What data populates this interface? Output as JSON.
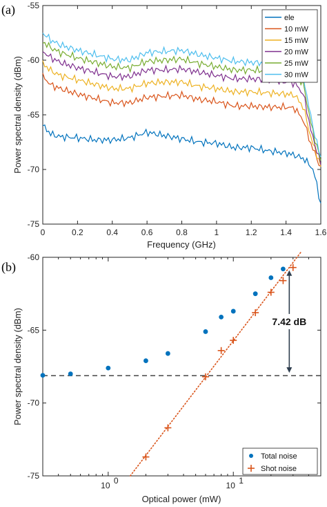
{
  "chart_data": [
    {
      "panel_label": "(a)",
      "type": "line",
      "xlabel": "Frequency (GHz)",
      "ylabel": "Power spectral density (dBm)",
      "xlim": [
        0,
        1.6
      ],
      "ylim": [
        -75,
        -55
      ],
      "xticks": [
        0,
        0.2,
        0.4,
        0.6,
        0.8,
        1,
        1.2,
        1.4,
        1.6
      ],
      "xtick_labels": [
        "0",
        "0.2",
        "0.4",
        "0.6",
        "0.8",
        "1",
        "1.2",
        "1.4",
        "1.6"
      ],
      "yticks": [
        -75,
        -70,
        -65,
        -60,
        -55
      ],
      "ytick_labels": [
        "-75",
        "-70",
        "-65",
        "-60",
        "-55"
      ],
      "legend_position": "top-right",
      "grid": false,
      "x": [
        0,
        0.05,
        0.1,
        0.2,
        0.3,
        0.4,
        0.5,
        0.6,
        0.7,
        0.8,
        0.9,
        1.0,
        1.1,
        1.2,
        1.3,
        1.4,
        1.45,
        1.5,
        1.55,
        1.58,
        1.6
      ],
      "series": [
        {
          "name": "ele",
          "color": "#0072BD",
          "values": [
            -66.0,
            -66.8,
            -67.0,
            -67.1,
            -67.3,
            -67.3,
            -67.1,
            -66.6,
            -66.9,
            -67.2,
            -67.5,
            -67.6,
            -68.0,
            -68.0,
            -68.3,
            -68.5,
            -68.7,
            -69.0,
            -69.8,
            -71.5,
            -73.3
          ]
        },
        {
          "name": "10 mW",
          "color": "#D95319",
          "values": [
            -61.5,
            -62.3,
            -62.6,
            -63.1,
            -63.5,
            -63.9,
            -63.9,
            -63.4,
            -63.3,
            -63.2,
            -63.6,
            -63.8,
            -64.2,
            -64.2,
            -64.3,
            -64.3,
            -64.4,
            -65.5,
            -68.0,
            -69.0,
            -70.0
          ]
        },
        {
          "name": "15 mW",
          "color": "#EDB120",
          "values": [
            -60.3,
            -61.0,
            -61.4,
            -61.8,
            -62.2,
            -62.6,
            -62.6,
            -62.1,
            -62.0,
            -62.0,
            -62.4,
            -62.6,
            -62.9,
            -62.9,
            -63.0,
            -63.1,
            -63.2,
            -64.3,
            -67.5,
            -68.7,
            -69.8
          ]
        },
        {
          "name": "20 mW",
          "color": "#7E2F8E",
          "values": [
            -59.2,
            -59.8,
            -60.2,
            -60.7,
            -61.1,
            -61.5,
            -61.5,
            -60.9,
            -60.9,
            -60.8,
            -61.1,
            -61.4,
            -61.7,
            -61.7,
            -61.8,
            -62.0,
            -62.1,
            -63.1,
            -66.9,
            -68.4,
            -69.5
          ]
        },
        {
          "name": "25 mW",
          "color": "#77AC30",
          "values": [
            -58.3,
            -58.9,
            -59.3,
            -59.8,
            -60.2,
            -60.6,
            -60.7,
            -60.1,
            -60.0,
            -59.9,
            -60.3,
            -60.6,
            -60.9,
            -60.9,
            -61.0,
            -61.2,
            -61.3,
            -62.2,
            -66.3,
            -68.0,
            -69.2
          ]
        },
        {
          "name": "30 mW",
          "color": "#4DBEEE",
          "values": [
            -57.5,
            -58.2,
            -58.6,
            -59.1,
            -59.5,
            -59.9,
            -60.0,
            -59.3,
            -59.2,
            -59.1,
            -59.5,
            -59.8,
            -60.1,
            -60.2,
            -60.3,
            -60.5,
            -60.6,
            -61.5,
            -65.8,
            -67.7,
            -69.0
          ]
        }
      ]
    },
    {
      "panel_label": "(b)",
      "type": "scatter",
      "xlabel": "Optical power (mW)",
      "ylabel": "Power spectral density (dBm)",
      "xscale": "log",
      "xlim": [
        0.3,
        50
      ],
      "ylim": [
        -75,
        -60
      ],
      "xticks": [
        1,
        10
      ],
      "xtick_labels": [
        {
          "base": "10",
          "exp": "0"
        },
        {
          "base": "10",
          "exp": "1"
        }
      ],
      "yticks": [
        -75,
        -70,
        -65,
        -60
      ],
      "ytick_labels": [
        "-75",
        "-70",
        "-65",
        "-60"
      ],
      "legend_position": "bottom-right",
      "grid": false,
      "annotation": "7.42 dB",
      "annotation_range": [
        -68.12,
        -60.7
      ],
      "annotation_x": 28,
      "reference_line": {
        "y": -68.12,
        "style": "dashed",
        "color": "#333333"
      },
      "fit_line": {
        "color": "#D95319",
        "style": "dotted",
        "x": [
          1.5,
          35
        ],
        "y": [
          -75.0,
          -59.6
        ]
      },
      "series": [
        {
          "name": "Total noise",
          "color": "#0072BD",
          "marker": "circle",
          "x": [
            0.3,
            0.5,
            1.0,
            2.0,
            3.0,
            6.0,
            8.0,
            10.0,
            15.0,
            20.0,
            25.0
          ],
          "y": [
            -68.1,
            -68.0,
            -67.6,
            -67.1,
            -66.6,
            -65.1,
            -64.1,
            -63.7,
            -62.5,
            -61.4,
            -60.8
          ]
        },
        {
          "name": "Shot noise",
          "color": "#D95319",
          "marker": "plus",
          "x": [
            2.0,
            3.0,
            6.0,
            8.0,
            10.0,
            15.0,
            20.0,
            25.0,
            30.0
          ],
          "y": [
            -73.7,
            -71.7,
            -68.2,
            -66.4,
            -65.7,
            -63.8,
            -62.4,
            -61.6,
            -60.7
          ]
        }
      ]
    }
  ]
}
